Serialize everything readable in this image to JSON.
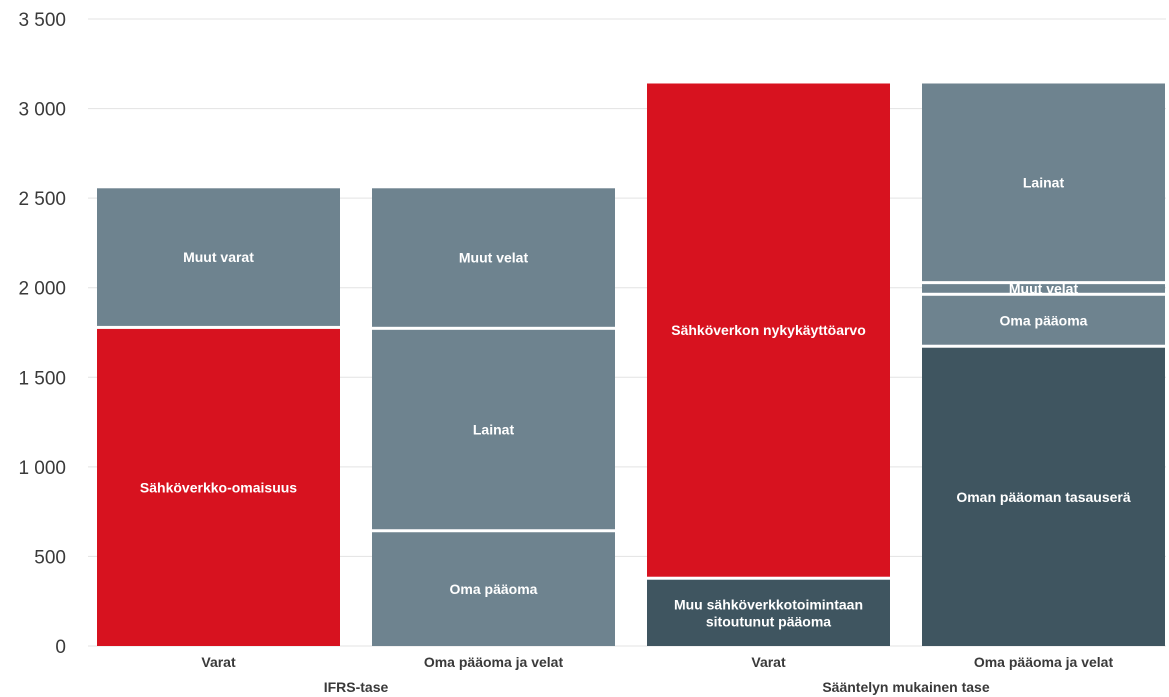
{
  "chart_data": {
    "type": "bar",
    "stacked": true,
    "ylim": [
      0,
      3500
    ],
    "yticks": [
      0,
      500,
      1000,
      1500,
      2000,
      2500,
      3000,
      3500
    ],
    "ytick_labels": [
      "0",
      "500",
      "1 000",
      "1 500",
      "2 000",
      "2 500",
      "3 000",
      "3 500"
    ],
    "grid": true,
    "groups": [
      {
        "label": "IFRS-tase",
        "columns": [
          0,
          1
        ]
      },
      {
        "label": "Sääntelyn mukainen tase",
        "columns": [
          2,
          3
        ]
      }
    ],
    "columns": [
      {
        "label": "Varat",
        "segments": [
          {
            "label": "Sähköverkko-omaisuus",
            "value": 1770,
            "color": "#d7121f"
          },
          {
            "label": "Muut varat",
            "value": 785,
            "color": "#6e838f"
          }
        ]
      },
      {
        "label": "Oma pääoma ja velat",
        "segments": [
          {
            "label": "Oma pääoma",
            "value": 635,
            "color": "#6e838f"
          },
          {
            "label": "Lainat",
            "value": 1130,
            "color": "#6e838f"
          },
          {
            "label": "Muut velat",
            "value": 790,
            "color": "#6e838f"
          }
        ]
      },
      {
        "label": "Varat",
        "segments": [
          {
            "label": "Muu sähköverkkotoimintaan sitoutunut pääoma",
            "value": 370,
            "color": "#3f5560"
          },
          {
            "label": "Sähköverkon nykykäyttöarvo",
            "value": 2770,
            "color": "#d7121f"
          }
        ]
      },
      {
        "label": "Oma pääoma ja velat",
        "segments": [
          {
            "label": "Oman pääoman tasauserä",
            "value": 1665,
            "color": "#3f5560"
          },
          {
            "label": "Oma pääoma",
            "value": 290,
            "color": "#6e838f"
          },
          {
            "label": "Muut velat",
            "value": 65,
            "color": "#6e838f"
          },
          {
            "label": "Lainat",
            "value": 1120,
            "color": "#6e838f"
          }
        ]
      }
    ]
  }
}
